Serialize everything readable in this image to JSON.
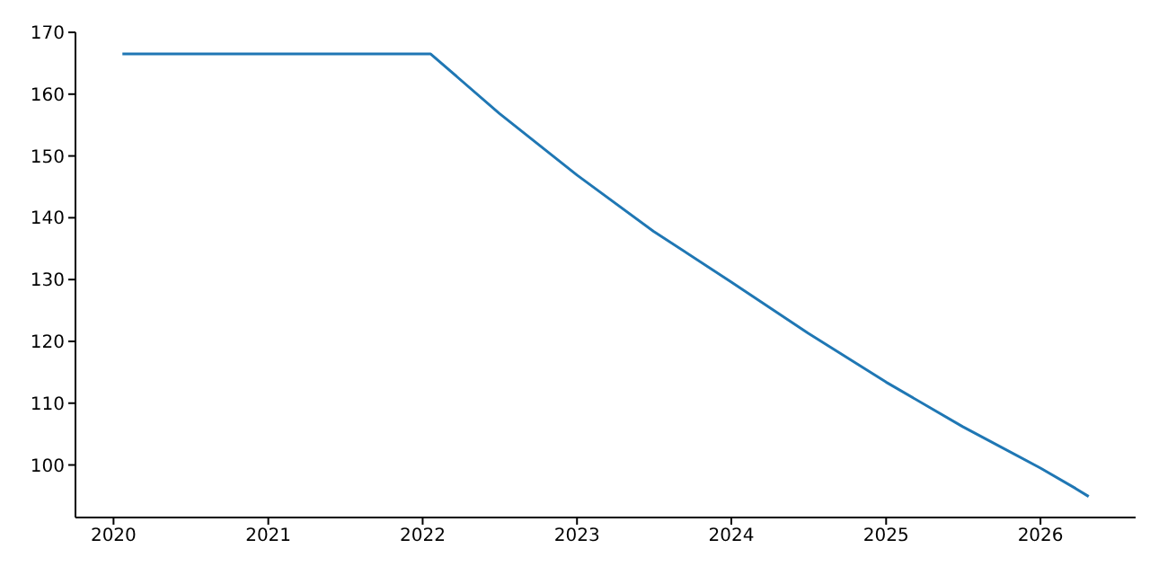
{
  "chart_data": {
    "type": "line",
    "x": [
      "2020-01-22",
      "2022-01-20",
      "2022-07-01",
      "2023-01-01",
      "2023-07-01",
      "2024-01-01",
      "2024-07-01",
      "2025-01-01",
      "2025-07-01",
      "2026-01-01",
      "2026-03-25",
      "2026-04-25"
    ],
    "series": [
      {
        "color": "#1f77b4",
        "values": [
          166.5,
          166.5,
          156.9,
          146.9,
          137.8,
          129.6,
          121.3,
          113.4,
          106.2,
          99.5,
          96.2,
          94.9
        ]
      }
    ],
    "xlim": [
      "2019-10-03",
      "2026-08-14"
    ],
    "xticks": [
      {
        "value": "2020-01-01",
        "label": "2020"
      },
      {
        "value": "2021-01-01",
        "label": "2021"
      },
      {
        "value": "2022-01-01",
        "label": "2022"
      },
      {
        "value": "2023-01-01",
        "label": "2023"
      },
      {
        "value": "2024-01-01",
        "label": "2024"
      },
      {
        "value": "2025-01-01",
        "label": "2025"
      },
      {
        "value": "2026-01-01",
        "label": "2026"
      }
    ],
    "ylim": [
      91.5,
      170
    ],
    "yticks": [
      100,
      110,
      120,
      130,
      140,
      150,
      160,
      170
    ],
    "grid": false,
    "legend": false,
    "marker": "none",
    "line_style": "solid"
  }
}
